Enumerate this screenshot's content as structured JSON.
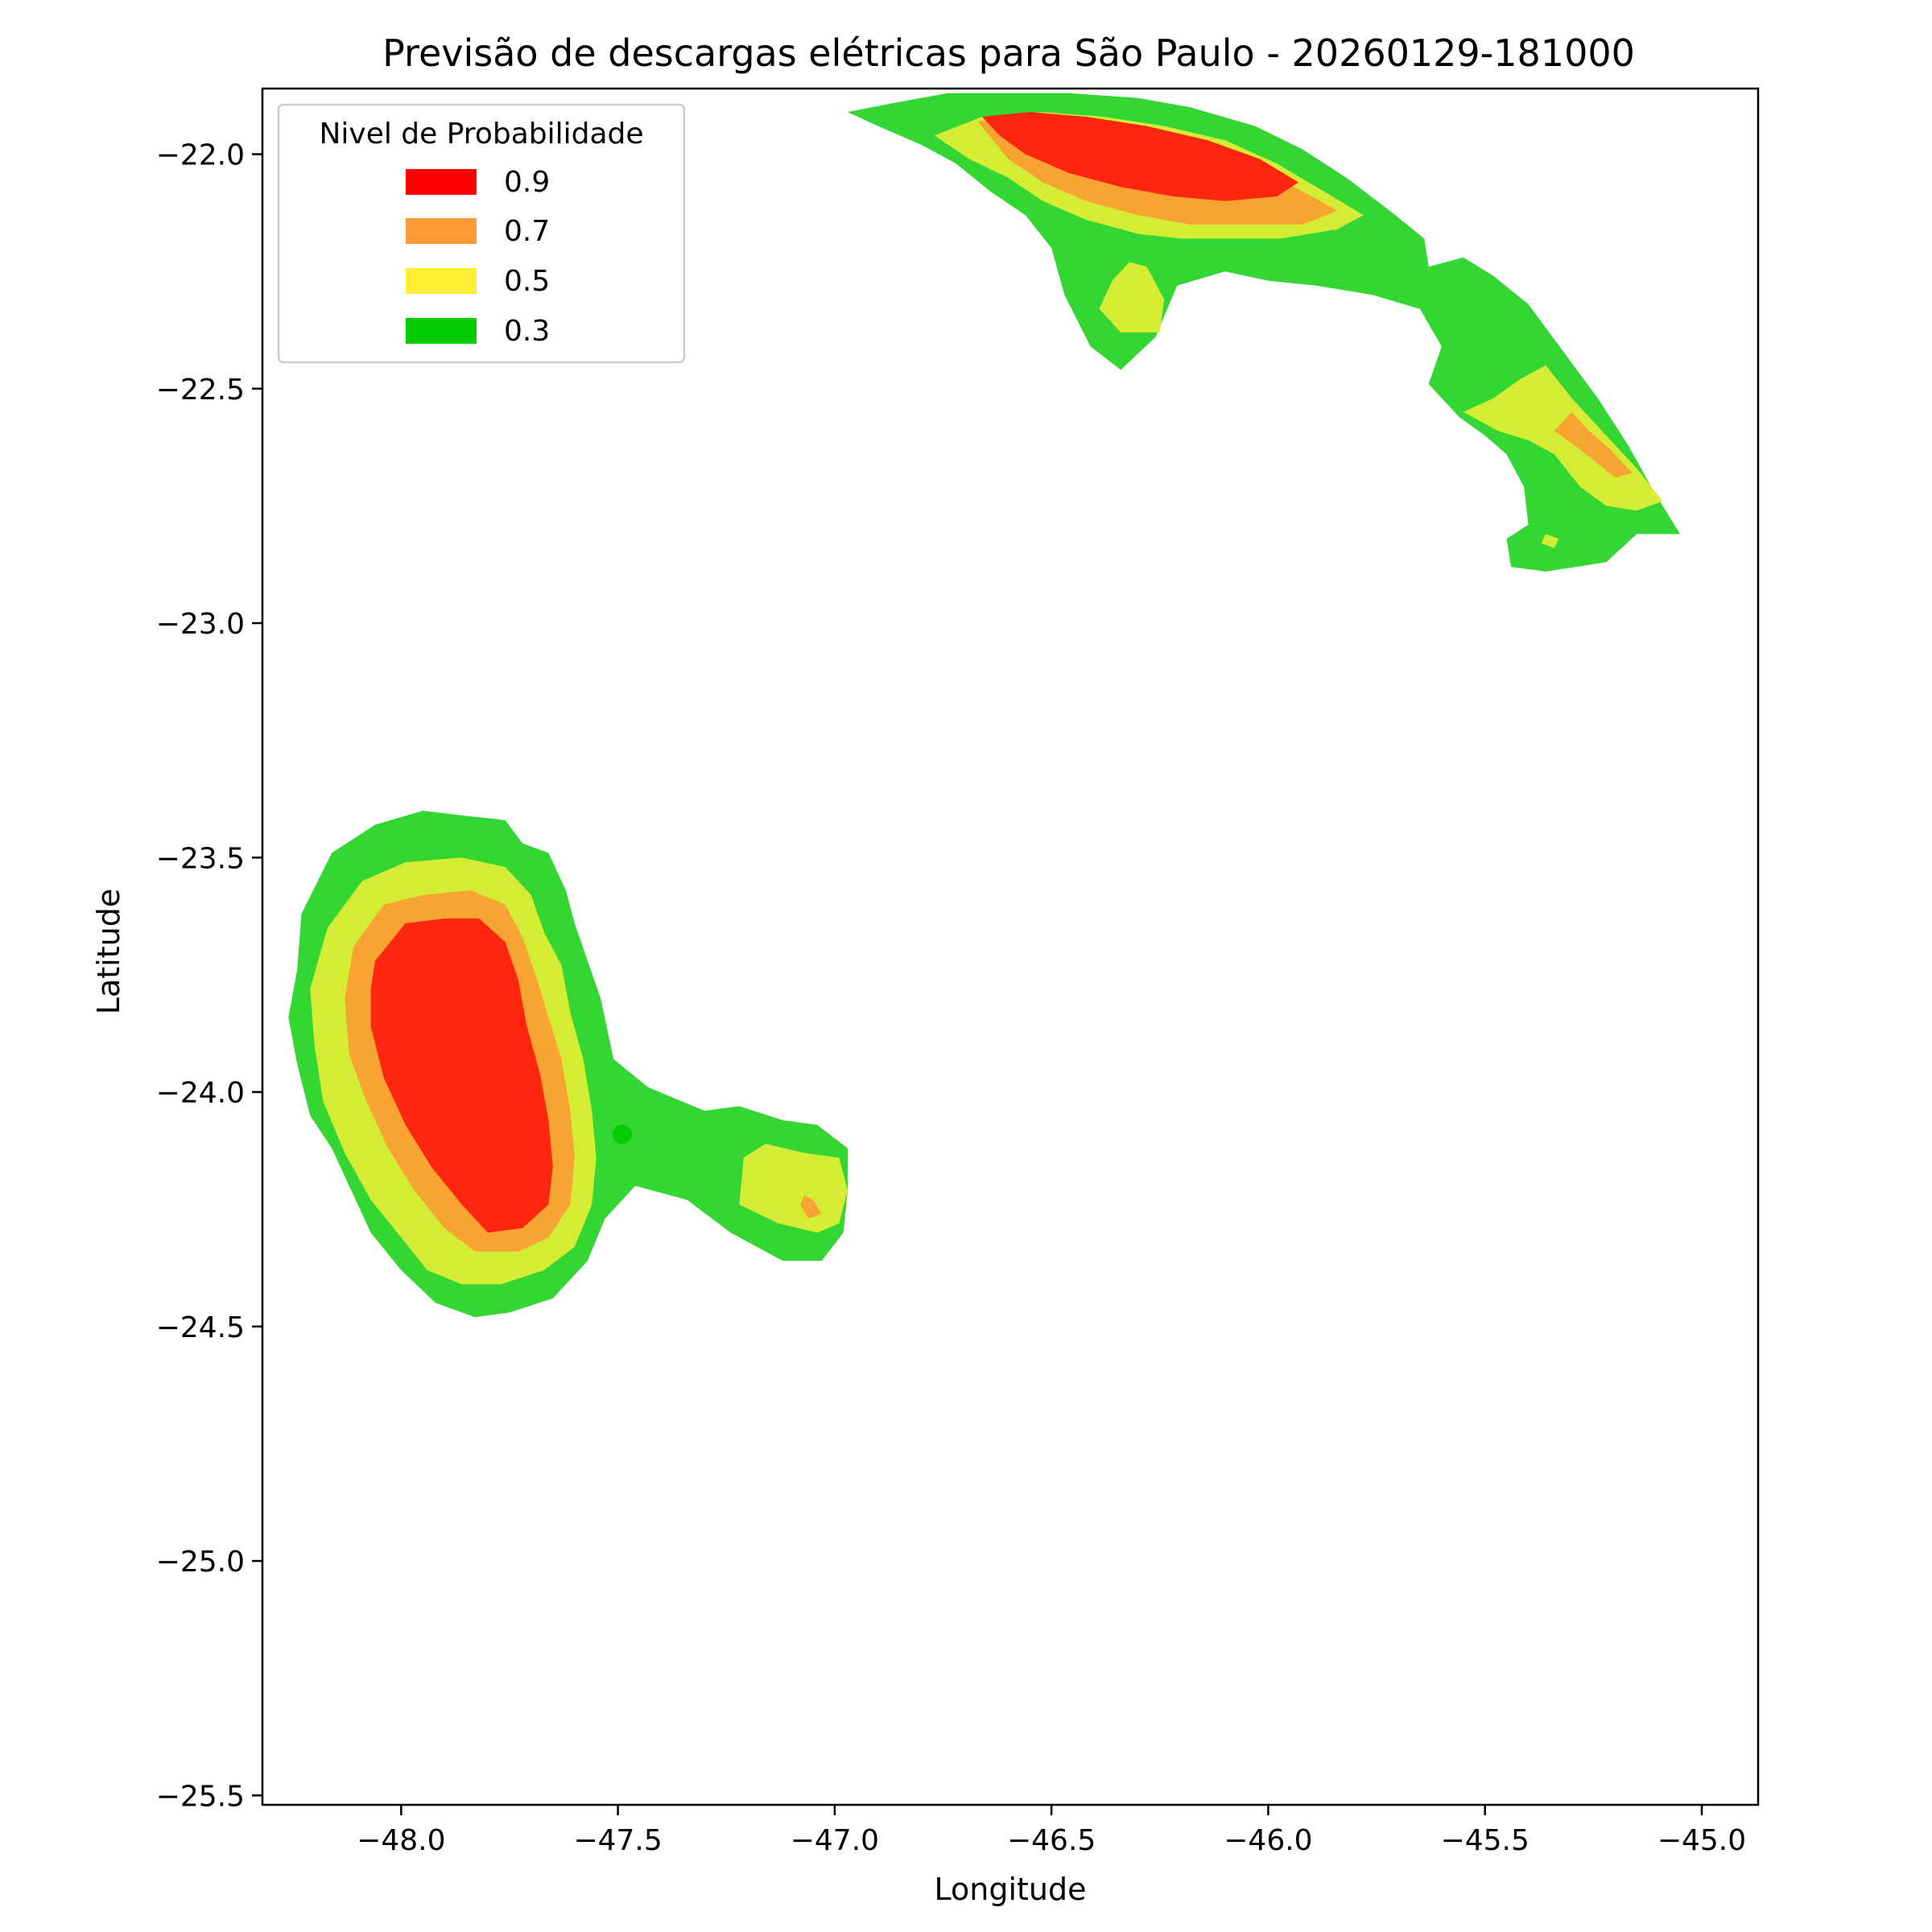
{
  "chart_data": {
    "type": "contour",
    "title": "Previsão de descargas elétricas para São Paulo - 20260129-181000",
    "xlabel": "Longitude",
    "ylabel": "Latitude",
    "xlim": [
      -48.32,
      -44.87
    ],
    "ylim": [
      -25.52,
      -21.86
    ],
    "xticks": [
      -48.0,
      -47.5,
      -47.0,
      -46.5,
      -46.0,
      -45.5,
      -45.0
    ],
    "yticks": [
      -22.0,
      -22.5,
      -23.0,
      -23.5,
      -24.0,
      -24.5,
      -25.0,
      -25.5
    ],
    "xtick_labels": [
      "−48.0",
      "−47.5",
      "−47.0",
      "−46.5",
      "−46.0",
      "−45.5",
      "−45.0"
    ],
    "ytick_labels": [
      "−22.0",
      "−22.5",
      "−23.0",
      "−23.5",
      "−24.0",
      "−24.5",
      "−25.0",
      "−25.5"
    ],
    "grid": false,
    "legend": {
      "title": "Nivel de Probabilidade",
      "placement": "upper-left",
      "entries": [
        {
          "label": "0.9",
          "color": "#ff0000"
        },
        {
          "label": "0.7",
          "color": "#ff9933"
        },
        {
          "label": "0.5",
          "color": "#ffee33"
        },
        {
          "label": "0.3",
          "color": "#00cc00"
        }
      ]
    },
    "fill_colors": {
      "0.3": "#33d633",
      "0.5": "#d4ec33",
      "0.7": "#f7a433",
      "0.9": "#ff2610"
    },
    "marker": {
      "lon": -47.49,
      "lat": -24.09,
      "color": "#00cc00"
    },
    "series": [
      {
        "level": "0.3",
        "regions": [
          [
            [
              -48.23,
              -23.62
            ],
            [
              -48.16,
              -23.49
            ],
            [
              -48.06,
              -23.43
            ],
            [
              -47.95,
              -23.4
            ],
            [
              -47.86,
              -23.41
            ],
            [
              -47.76,
              -23.42
            ],
            [
              -47.72,
              -23.47
            ],
            [
              -47.66,
              -23.49
            ],
            [
              -47.62,
              -23.57
            ],
            [
              -47.6,
              -23.64
            ],
            [
              -47.54,
              -23.8
            ],
            [
              -47.51,
              -23.93
            ],
            [
              -47.43,
              -23.99
            ],
            [
              -47.3,
              -24.04
            ],
            [
              -47.22,
              -24.03
            ],
            [
              -47.12,
              -24.06
            ],
            [
              -47.04,
              -24.07
            ],
            [
              -46.97,
              -24.12
            ],
            [
              -46.97,
              -24.21
            ],
            [
              -46.98,
              -24.3
            ],
            [
              -47.03,
              -24.36
            ],
            [
              -47.12,
              -24.36
            ],
            [
              -47.24,
              -24.3
            ],
            [
              -47.34,
              -24.23
            ],
            [
              -47.46,
              -24.2
            ],
            [
              -47.53,
              -24.27
            ],
            [
              -47.57,
              -24.36
            ],
            [
              -47.65,
              -24.44
            ],
            [
              -47.75,
              -24.47
            ],
            [
              -47.83,
              -24.48
            ],
            [
              -47.92,
              -24.45
            ],
            [
              -48.0,
              -24.38
            ],
            [
              -48.07,
              -24.3
            ],
            [
              -48.11,
              -24.22
            ],
            [
              -48.16,
              -24.12
            ],
            [
              -48.21,
              -24.05
            ],
            [
              -48.24,
              -23.94
            ],
            [
              -48.26,
              -23.84
            ],
            [
              -48.24,
              -23.74
            ]
          ],
          [
            [
              -46.97,
              -21.91
            ],
            [
              -46.86,
              -21.89
            ],
            [
              -46.74,
              -21.87
            ],
            [
              -46.62,
              -21.87
            ],
            [
              -46.46,
              -21.87
            ],
            [
              -46.3,
              -21.88
            ],
            [
              -46.18,
              -21.9
            ],
            [
              -46.03,
              -21.94
            ],
            [
              -45.92,
              -21.99
            ],
            [
              -45.82,
              -22.05
            ],
            [
              -45.72,
              -22.12
            ],
            [
              -45.64,
              -22.18
            ],
            [
              -45.63,
              -22.24
            ],
            [
              -45.55,
              -22.22
            ],
            [
              -45.48,
              -22.26
            ],
            [
              -45.4,
              -22.32
            ],
            [
              -45.32,
              -22.42
            ],
            [
              -45.24,
              -22.52
            ],
            [
              -45.17,
              -22.62
            ],
            [
              -45.11,
              -22.72
            ],
            [
              -45.05,
              -22.81
            ],
            [
              -45.15,
              -22.81
            ],
            [
              -45.22,
              -22.87
            ],
            [
              -45.29,
              -22.88
            ],
            [
              -45.36,
              -22.89
            ],
            [
              -45.44,
              -22.88
            ],
            [
              -45.45,
              -22.82
            ],
            [
              -45.4,
              -22.79
            ],
            [
              -45.41,
              -22.71
            ],
            [
              -45.45,
              -22.64
            ],
            [
              -45.5,
              -22.6
            ],
            [
              -45.56,
              -22.56
            ],
            [
              -45.63,
              -22.49
            ],
            [
              -45.6,
              -22.41
            ],
            [
              -45.65,
              -22.33
            ],
            [
              -45.76,
              -22.3
            ],
            [
              -45.89,
              -22.28
            ],
            [
              -46.0,
              -22.27
            ],
            [
              -46.1,
              -22.25
            ],
            [
              -46.21,
              -22.28
            ],
            [
              -46.26,
              -22.39
            ],
            [
              -46.34,
              -22.46
            ],
            [
              -46.41,
              -22.41
            ],
            [
              -46.47,
              -22.3
            ],
            [
              -46.5,
              -22.2
            ],
            [
              -46.56,
              -22.13
            ],
            [
              -46.64,
              -22.08
            ],
            [
              -46.72,
              -22.02
            ],
            [
              -46.8,
              -21.98
            ],
            [
              -46.9,
              -21.94
            ]
          ]
        ]
      },
      {
        "level": "0.5",
        "regions": [
          [
            [
              -48.17,
              -23.65
            ],
            [
              -48.09,
              -23.55
            ],
            [
              -47.99,
              -23.51
            ],
            [
              -47.86,
              -23.5
            ],
            [
              -47.76,
              -23.52
            ],
            [
              -47.7,
              -23.58
            ],
            [
              -47.67,
              -23.66
            ],
            [
              -47.63,
              -23.73
            ],
            [
              -47.61,
              -23.83
            ],
            [
              -47.58,
              -23.93
            ],
            [
              -47.56,
              -24.04
            ],
            [
              -47.55,
              -24.14
            ],
            [
              -47.56,
              -24.24
            ],
            [
              -47.6,
              -24.33
            ],
            [
              -47.67,
              -24.38
            ],
            [
              -47.77,
              -24.41
            ],
            [
              -47.86,
              -24.41
            ],
            [
              -47.94,
              -24.38
            ],
            [
              -48.0,
              -24.31
            ],
            [
              -48.07,
              -24.23
            ],
            [
              -48.13,
              -24.13
            ],
            [
              -48.18,
              -24.02
            ],
            [
              -48.2,
              -23.9
            ],
            [
              -48.21,
              -23.78
            ]
          ],
          [
            [
              -47.07,
              -24.13
            ],
            [
              -46.99,
              -24.14
            ],
            [
              -46.97,
              -24.21
            ],
            [
              -46.99,
              -24.28
            ],
            [
              -47.04,
              -24.3
            ],
            [
              -47.13,
              -24.28
            ],
            [
              -47.22,
              -24.24
            ],
            [
              -47.21,
              -24.14
            ],
            [
              -47.16,
              -24.11
            ]
          ],
          [
            [
              -46.77,
              -21.96
            ],
            [
              -46.66,
              -21.92
            ],
            [
              -46.52,
              -21.91
            ],
            [
              -46.38,
              -21.92
            ],
            [
              -46.24,
              -21.94
            ],
            [
              -46.1,
              -21.97
            ],
            [
              -45.98,
              -22.02
            ],
            [
              -45.87,
              -22.08
            ],
            [
              -45.78,
              -22.13
            ],
            [
              -45.84,
              -22.16
            ],
            [
              -45.97,
              -22.18
            ],
            [
              -46.09,
              -22.18
            ],
            [
              -46.2,
              -22.18
            ],
            [
              -46.3,
              -22.17
            ],
            [
              -46.42,
              -22.14
            ],
            [
              -46.52,
              -22.1
            ],
            [
              -46.6,
              -22.05
            ],
            [
              -46.69,
              -22.01
            ]
          ],
          [
            [
              -46.32,
              -22.23
            ],
            [
              -46.36,
              -22.27
            ],
            [
              -46.39,
              -22.33
            ],
            [
              -46.34,
              -22.38
            ],
            [
              -46.25,
              -22.38
            ],
            [
              -46.24,
              -22.31
            ],
            [
              -46.28,
              -22.24
            ]
          ],
          [
            [
              -45.3,
              -22.52
            ],
            [
              -45.36,
              -22.45
            ],
            [
              -45.42,
              -22.48
            ],
            [
              -45.48,
              -22.52
            ],
            [
              -45.55,
              -22.55
            ],
            [
              -45.47,
              -22.59
            ],
            [
              -45.4,
              -22.61
            ],
            [
              -45.34,
              -22.64
            ],
            [
              -45.28,
              -22.71
            ],
            [
              -45.22,
              -22.75
            ],
            [
              -45.15,
              -22.76
            ],
            [
              -45.09,
              -22.74
            ],
            [
              -45.15,
              -22.67
            ],
            [
              -45.22,
              -22.6
            ]
          ],
          [
            [
              -45.36,
              -22.81
            ],
            [
              -45.33,
              -22.82
            ],
            [
              -45.34,
              -22.84
            ],
            [
              -45.37,
              -22.83
            ]
          ]
        ]
      },
      {
        "level": "0.7",
        "regions": [
          [
            [
              -48.11,
              -23.69
            ],
            [
              -48.04,
              -23.6
            ],
            [
              -47.95,
              -23.58
            ],
            [
              -47.84,
              -23.57
            ],
            [
              -47.76,
              -23.6
            ],
            [
              -47.72,
              -23.67
            ],
            [
              -47.69,
              -23.75
            ],
            [
              -47.66,
              -23.84
            ],
            [
              -47.63,
              -23.93
            ],
            [
              -47.61,
              -24.04
            ],
            [
              -47.6,
              -24.14
            ],
            [
              -47.61,
              -24.24
            ],
            [
              -47.66,
              -24.31
            ],
            [
              -47.73,
              -24.34
            ],
            [
              -47.83,
              -24.34
            ],
            [
              -47.9,
              -24.29
            ],
            [
              -47.97,
              -24.21
            ],
            [
              -48.03,
              -24.12
            ],
            [
              -48.08,
              -24.02
            ],
            [
              -48.12,
              -23.92
            ],
            [
              -48.13,
              -23.8
            ]
          ],
          [
            [
              -47.07,
              -24.22
            ],
            [
              -47.08,
              -24.24
            ],
            [
              -47.06,
              -24.27
            ],
            [
              -47.03,
              -24.26
            ],
            [
              -47.05,
              -24.23
            ]
          ],
          [
            [
              -46.67,
              -21.93
            ],
            [
              -46.54,
              -21.92
            ],
            [
              -46.4,
              -21.93
            ],
            [
              -46.26,
              -21.95
            ],
            [
              -46.12,
              -21.99
            ],
            [
              -46.0,
              -22.04
            ],
            [
              -45.9,
              -22.09
            ],
            [
              -45.84,
              -22.12
            ],
            [
              -45.92,
              -22.15
            ],
            [
              -46.05,
              -22.15
            ],
            [
              -46.18,
              -22.15
            ],
            [
              -46.3,
              -22.13
            ],
            [
              -46.42,
              -22.1
            ],
            [
              -46.52,
              -22.06
            ],
            [
              -46.6,
              -22.01
            ]
          ],
          [
            [
              -45.26,
              -22.59
            ],
            [
              -45.3,
              -22.55
            ],
            [
              -45.34,
              -22.59
            ],
            [
              -45.28,
              -22.63
            ],
            [
              -45.2,
              -22.69
            ],
            [
              -45.16,
              -22.68
            ],
            [
              -45.21,
              -22.63
            ]
          ]
        ]
      },
      {
        "level": "0.9",
        "regions": [
          [
            [
              -48.06,
              -23.72
            ],
            [
              -47.99,
              -23.64
            ],
            [
              -47.9,
              -23.63
            ],
            [
              -47.82,
              -23.63
            ],
            [
              -47.76,
              -23.68
            ],
            [
              -47.73,
              -23.76
            ],
            [
              -47.71,
              -23.86
            ],
            [
              -47.68,
              -23.96
            ],
            [
              -47.66,
              -24.06
            ],
            [
              -47.65,
              -24.16
            ],
            [
              -47.66,
              -24.24
            ],
            [
              -47.72,
              -24.29
            ],
            [
              -47.8,
              -24.3
            ],
            [
              -47.86,
              -24.24
            ],
            [
              -47.93,
              -24.16
            ],
            [
              -47.99,
              -24.07
            ],
            [
              -48.04,
              -23.97
            ],
            [
              -48.07,
              -23.86
            ],
            [
              -48.07,
              -23.78
            ]
          ],
          [
            [
              -46.66,
              -21.92
            ],
            [
              -46.55,
              -21.91
            ],
            [
              -46.42,
              -21.92
            ],
            [
              -46.28,
              -21.94
            ],
            [
              -46.14,
              -21.97
            ],
            [
              -46.02,
              -22.01
            ],
            [
              -45.93,
              -22.06
            ],
            [
              -45.98,
              -22.09
            ],
            [
              -46.1,
              -22.1
            ],
            [
              -46.22,
              -22.09
            ],
            [
              -46.34,
              -22.07
            ],
            [
              -46.46,
              -22.04
            ],
            [
              -46.56,
              -22.0
            ],
            [
              -46.62,
              -21.96
            ]
          ]
        ]
      }
    ]
  }
}
